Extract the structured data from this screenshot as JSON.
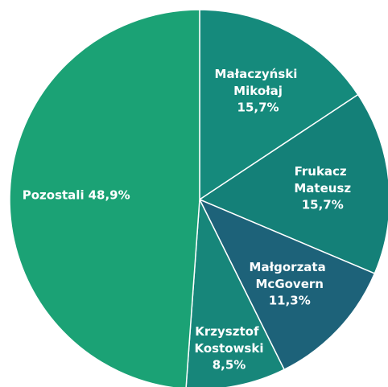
{
  "chart_data": {
    "type": "pie",
    "categories": [
      "Małaczyński Mikołaj",
      "Frukacz Mateusz",
      "Małgorzata McGovern",
      "Krzysztof Kostowski",
      "Pozostali"
    ],
    "values": [
      15.7,
      15.7,
      11.3,
      8.5,
      48.9
    ],
    "value_labels": [
      "15,7%",
      "15,7%",
      "11,3%",
      "8,5%",
      "48,9%"
    ],
    "colors": [
      "#158a7c",
      "#148078",
      "#1d6279",
      "#17867a",
      "#1ba275"
    ]
  }
}
